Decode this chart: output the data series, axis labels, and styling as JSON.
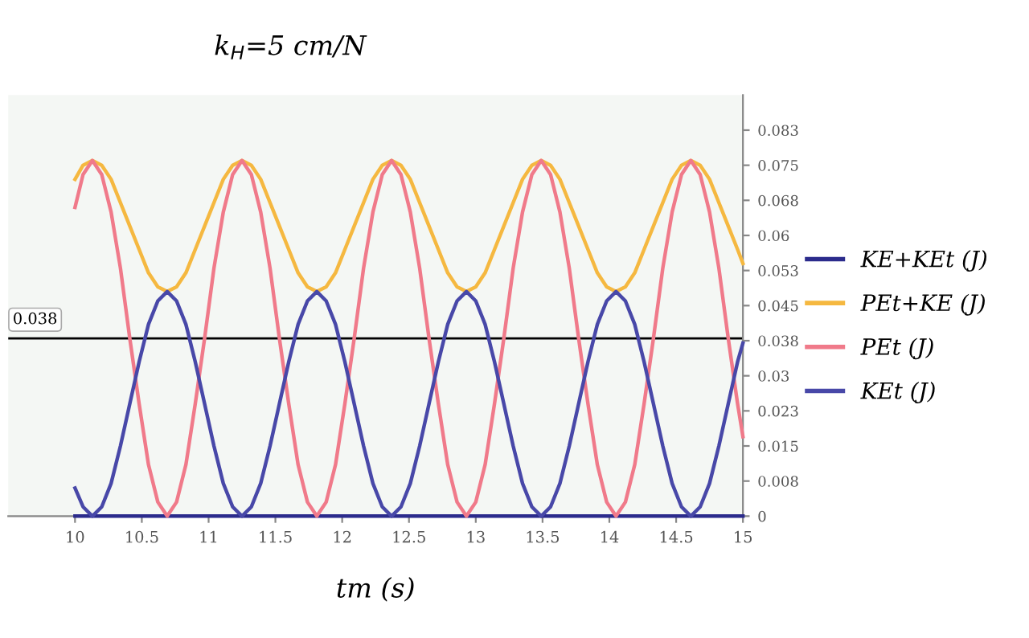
{
  "chart_data": {
    "type": "line",
    "title": "k$_{H}$=5 cm/N",
    "xlabel": "tm (s)",
    "xlim": [
      9.5,
      15
    ],
    "xticks": [
      10,
      10.5,
      11,
      11.5,
      12,
      12.5,
      13,
      13.5,
      14,
      14.5,
      15
    ],
    "ylim": [
      0,
      0.09
    ],
    "yticks": [
      0,
      {
        "value": 0.0075,
        "label": "0.008"
      },
      {
        "value": 0.015,
        "label": "0.015"
      },
      {
        "value": 0.0225,
        "label": "0.023"
      },
      {
        "value": 0.03,
        "label": "0.03"
      },
      {
        "value": 0.0375,
        "label": "0.038"
      },
      {
        "value": 0.045,
        "label": "0.045"
      },
      {
        "value": 0.0525,
        "label": "0.053"
      },
      {
        "value": 0.06,
        "label": "0.06"
      },
      {
        "value": 0.0675,
        "label": "0.068"
      },
      {
        "value": 0.075,
        "label": "0.075"
      },
      {
        "value": 0.0825,
        "label": "0.083"
      }
    ],
    "x": [
      10,
      10.06,
      10.13,
      10.2,
      10.27,
      10.34,
      10.41,
      10.48,
      10.55,
      10.62,
      10.69,
      10.76,
      10.83,
      10.9,
      10.97,
      11.04,
      11.11,
      11.18,
      11.25,
      11.32,
      11.39,
      11.46,
      11.53,
      11.6,
      11.67,
      11.74,
      11.81,
      11.88,
      11.95,
      12.02,
      12.09,
      12.16,
      12.23,
      12.3,
      12.37,
      12.44,
      12.51,
      12.58,
      12.65,
      12.72,
      12.79,
      12.86,
      12.93,
      13,
      13.07,
      13.14,
      13.21,
      13.28,
      13.35,
      13.42,
      13.49,
      13.56,
      13.63,
      13.7,
      13.77,
      13.84,
      13.91,
      13.98,
      14.05,
      14.12,
      14.19,
      14.26,
      14.33,
      14.4,
      14.47,
      14.54,
      14.61,
      14.68,
      14.75,
      14.82,
      14.89,
      14.96,
      15
    ],
    "series": [
      {
        "name": "KE+KEt (J)",
        "color": "#2b2b8c",
        "x": [
          10,
          15
        ],
        "values": [
          0,
          0
        ]
      },
      {
        "name": "PEt+KE (J)",
        "color": "#f5b840",
        "values": [
          0.072,
          0.075,
          0.076,
          0.075,
          0.072,
          0.067,
          0.062,
          0.057,
          0.052,
          0.049,
          0.048,
          0.049,
          0.052,
          0.057,
          0.062,
          0.067,
          0.072,
          0.075,
          0.076,
          0.075,
          0.072,
          0.067,
          0.062,
          0.057,
          0.052,
          0.049,
          0.048,
          0.049,
          0.052,
          0.057,
          0.062,
          0.067,
          0.072,
          0.075,
          0.076,
          0.075,
          0.072,
          0.067,
          0.062,
          0.057,
          0.052,
          0.049,
          0.048,
          0.049,
          0.052,
          0.057,
          0.062,
          0.067,
          0.072,
          0.075,
          0.076,
          0.075,
          0.072,
          0.067,
          0.062,
          0.057,
          0.052,
          0.049,
          0.048,
          0.049,
          0.052,
          0.057,
          0.062,
          0.067,
          0.072,
          0.075,
          0.076,
          0.075,
          0.072,
          0.067,
          0.062,
          0.057,
          0.054
        ]
      },
      {
        "name": "PEt (J)",
        "color": "#f07a8a",
        "values": [
          0.066,
          0.073,
          0.076,
          0.073,
          0.065,
          0.053,
          0.038,
          0.024,
          0.011,
          0.003,
          0,
          0.003,
          0.011,
          0.024,
          0.038,
          0.053,
          0.065,
          0.073,
          0.076,
          0.073,
          0.065,
          0.053,
          0.038,
          0.024,
          0.011,
          0.003,
          0,
          0.003,
          0.011,
          0.024,
          0.038,
          0.053,
          0.065,
          0.073,
          0.076,
          0.073,
          0.065,
          0.053,
          0.038,
          0.024,
          0.011,
          0.003,
          0,
          0.003,
          0.011,
          0.024,
          0.038,
          0.053,
          0.065,
          0.073,
          0.076,
          0.073,
          0.065,
          0.053,
          0.038,
          0.024,
          0.011,
          0.003,
          0,
          0.003,
          0.011,
          0.024,
          0.038,
          0.053,
          0.065,
          0.073,
          0.076,
          0.073,
          0.065,
          0.053,
          0.038,
          0.024,
          0.017
        ]
      },
      {
        "name": "KEt (J)",
        "color": "#4848a8",
        "values": [
          0.006,
          0.002,
          0,
          0.002,
          0.007,
          0.015,
          0.024,
          0.033,
          0.041,
          0.046,
          0.048,
          0.046,
          0.041,
          0.033,
          0.024,
          0.015,
          0.007,
          0.002,
          0,
          0.002,
          0.007,
          0.015,
          0.024,
          0.033,
          0.041,
          0.046,
          0.048,
          0.046,
          0.041,
          0.033,
          0.024,
          0.015,
          0.007,
          0.002,
          0,
          0.002,
          0.007,
          0.015,
          0.024,
          0.033,
          0.041,
          0.046,
          0.048,
          0.046,
          0.041,
          0.033,
          0.024,
          0.015,
          0.007,
          0.002,
          0,
          0.002,
          0.007,
          0.015,
          0.024,
          0.033,
          0.041,
          0.046,
          0.048,
          0.046,
          0.041,
          0.033,
          0.024,
          0.015,
          0.007,
          0.002,
          0,
          0.002,
          0.007,
          0.015,
          0.024,
          0.033,
          0.037
        ]
      }
    ],
    "ref_lines": [
      {
        "axis": "y",
        "value": 0.038,
        "label": "0.038",
        "color": "#000000"
      }
    ],
    "legend": "right",
    "grid": false,
    "marker": "none",
    "line_style": "solid"
  }
}
